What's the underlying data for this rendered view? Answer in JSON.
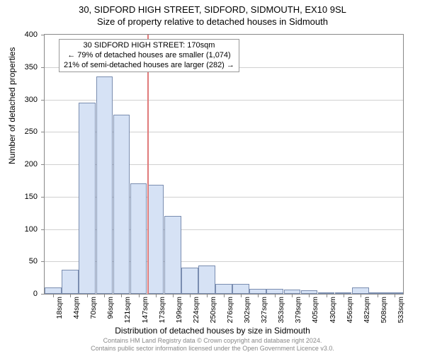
{
  "chart": {
    "type": "histogram",
    "title_line1": "30, SIDFORD HIGH STREET, SIDFORD, SIDMOUTH, EX10 9SL",
    "title_line2": "Size of property relative to detached houses in Sidmouth",
    "xlabel": "Distribution of detached houses by size in Sidmouth",
    "ylabel": "Number of detached properties",
    "background_color": "#ffffff",
    "grid_color": "#d0d0d0",
    "border_color": "#888888",
    "bar_fill": "#d6e2f5",
    "bar_stroke": "#7a8db0",
    "marker_color": "#e07a7a",
    "ylim": [
      0,
      400
    ],
    "ytick_step": 50,
    "yticks": [
      0,
      50,
      100,
      150,
      200,
      250,
      300,
      350,
      400
    ],
    "xticks": [
      "18sqm",
      "44sqm",
      "70sqm",
      "96sqm",
      "121sqm",
      "147sqm",
      "173sqm",
      "199sqm",
      "224sqm",
      "250sqm",
      "276sqm",
      "302sqm",
      "327sqm",
      "353sqm",
      "379sqm",
      "405sqm",
      "430sqm",
      "456sqm",
      "482sqm",
      "508sqm",
      "533sqm"
    ],
    "values": [
      10,
      37,
      295,
      336,
      276,
      170,
      168,
      120,
      40,
      44,
      15,
      15,
      8,
      8,
      7,
      6,
      2,
      2,
      10,
      2,
      1
    ],
    "marker_index": 6,
    "annotation": {
      "line1": "30 SIDFORD HIGH STREET: 170sqm",
      "line2": "← 79% of detached houses are smaller (1,074)",
      "line3": "21% of semi-detached houses are larger (282) →"
    },
    "title_fontsize": 13,
    "label_fontsize": 12,
    "tick_fontsize": 11
  },
  "footer": {
    "line1": "Contains HM Land Registry data © Crown copyright and database right 2024.",
    "line2": "Contains public sector information licensed under the Open Government Licence v3.0."
  }
}
